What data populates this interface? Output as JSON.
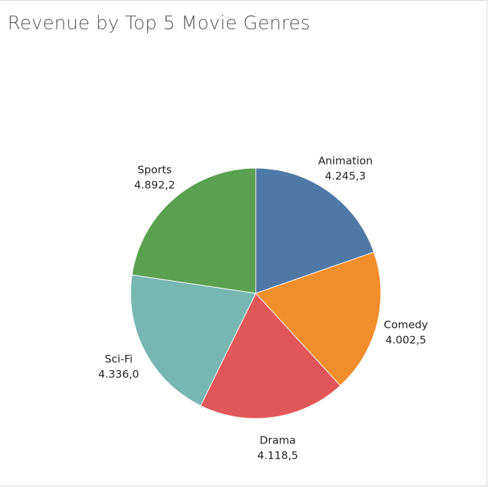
{
  "title": "Revenue by Top 5 Movie Genres",
  "chart_data": {
    "type": "pie",
    "title": "Revenue by Top 5 Movie Genres",
    "start_angle_deg": 0,
    "direction": "clockwise",
    "slices": [
      {
        "label": "Animation",
        "value": 4245.3,
        "value_text": "4.245,3",
        "color": "#4e79a7"
      },
      {
        "label": "Comedy",
        "value": 4002.5,
        "value_text": "4.002,5",
        "color": "#f28e2b"
      },
      {
        "label": "Drama",
        "value": 4118.5,
        "value_text": "4.118,5",
        "color": "#e15759"
      },
      {
        "label": "Sci-Fi",
        "value": 4336.0,
        "value_text": "4.336,0",
        "color": "#76b7b2"
      },
      {
        "label": "Sports",
        "value": 4892.2,
        "value_text": "4.892,2",
        "color": "#59a14f"
      }
    ]
  }
}
